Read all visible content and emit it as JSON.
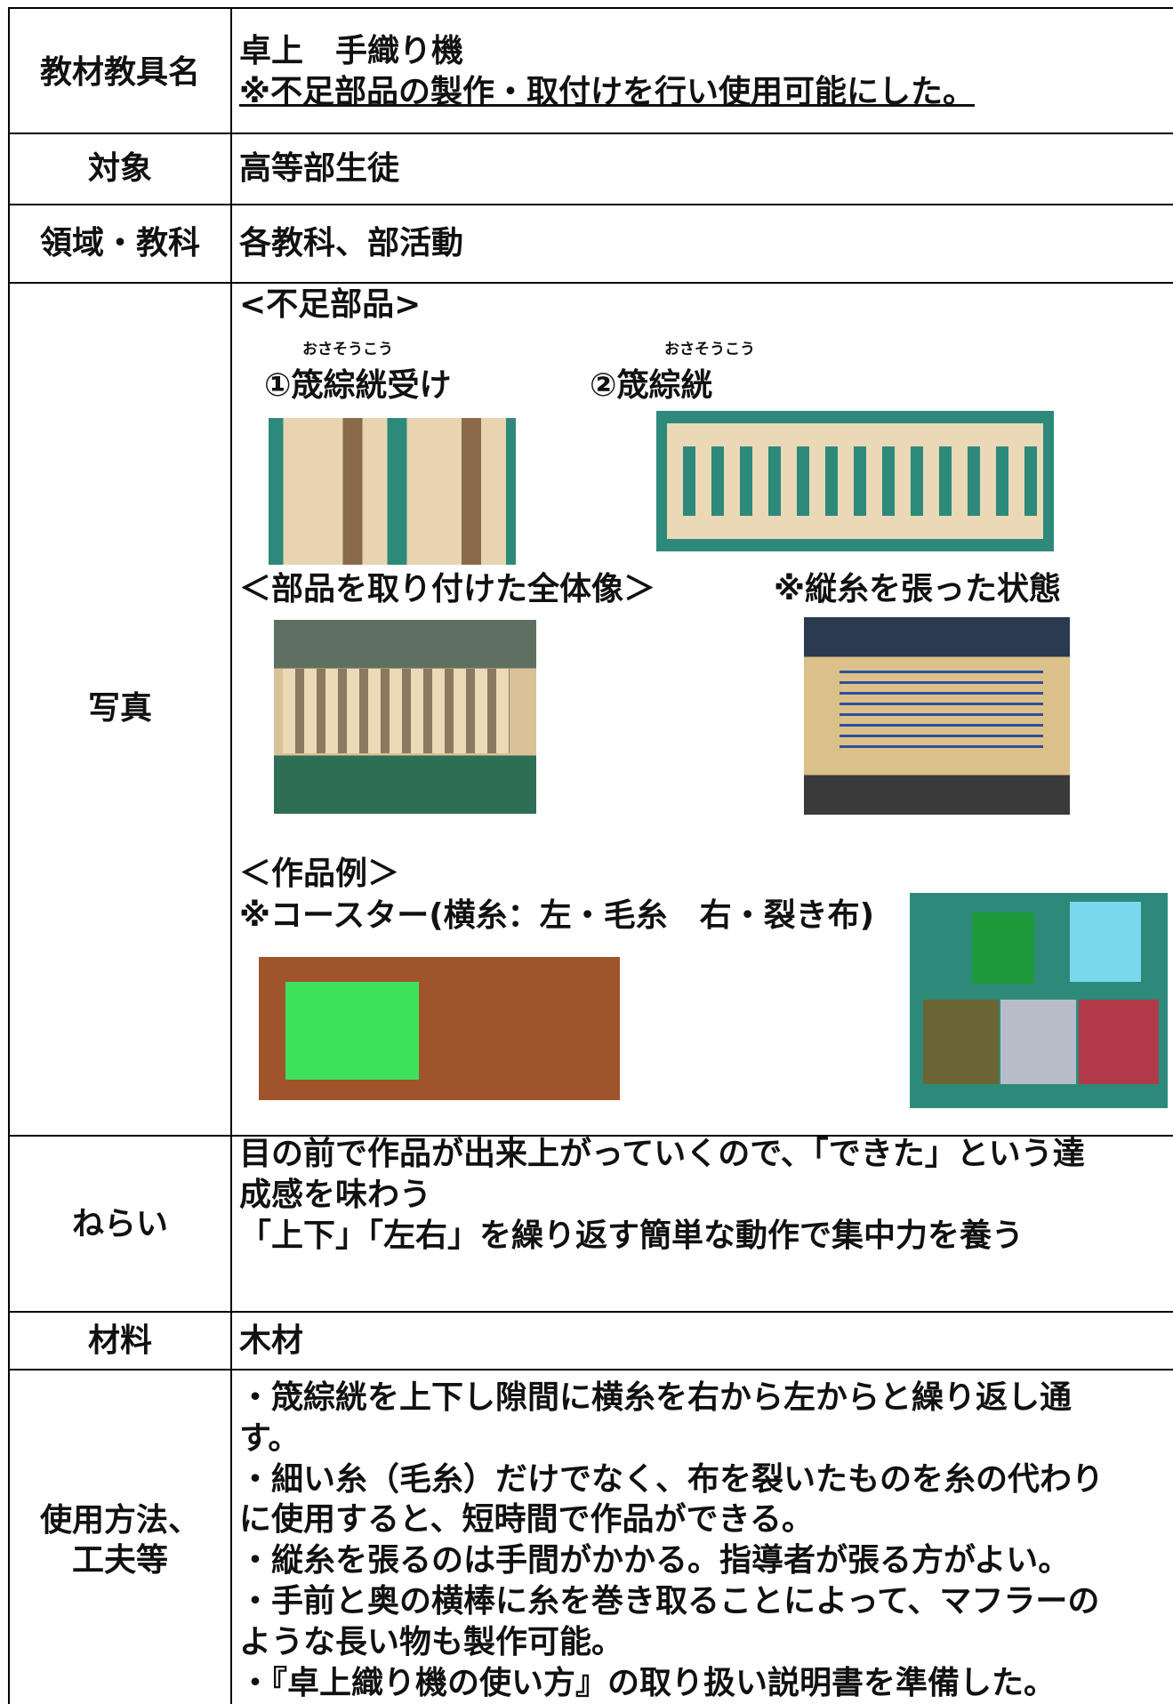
{
  "rows": [
    {
      "label": "教材教具名",
      "content": [
        "卓上　手織り機",
        "※不足部品の製作・取付けを行い使用可能にした。"
      ]
    },
    {
      "label": "対象",
      "content": [
        "高等部生徒"
      ]
    },
    {
      "label": "領域・教科",
      "content": [
        "各教科、部活動"
      ]
    },
    {
      "label": "写真",
      "photos": {
        "heading": "<不足部品>",
        "ruby1": "おさそうこう",
        "part1": "①筬綜絖受け",
        "ruby2": "おさそうこう",
        "part2": "②筬綜絖",
        "assembled": "＜部品を取り付けた全体像＞",
        "warp": "※縦糸を張った状態",
        "examples": "＜作品例＞",
        "coaster": "※コースター(横糸：左・毛糸　右・裂き布)"
      }
    },
    {
      "label": "ねらい",
      "content": [
        "目の前で作品が出来上がっていくので、「できた」という達",
        "成感を味わう",
        "「上下」「左右」を繰り返す簡単な動作で集中力を養う"
      ]
    },
    {
      "label": "材料",
      "content": [
        "木材"
      ]
    },
    {
      "label": [
        "使用方法、",
        "工夫等"
      ],
      "content": [
        "・筬綜絖を上下し隙間に横糸を右から左からと繰り返し通",
        "す。",
        "・細い糸（毛糸）だけでなく、布を裂いたものを糸の代わり",
        "に使用すると、短時間で作品ができる。",
        "・縦糸を張るのは手間がかかる。指導者が張る方がよい。",
        "・手前と奥の横棒に糸を巻き取ることによって、マフラーの",
        "ような長い物も製作可能。",
        "・『卓上織り機の使い方』の取り扱い説明書を準備した。"
      ]
    }
  ]
}
